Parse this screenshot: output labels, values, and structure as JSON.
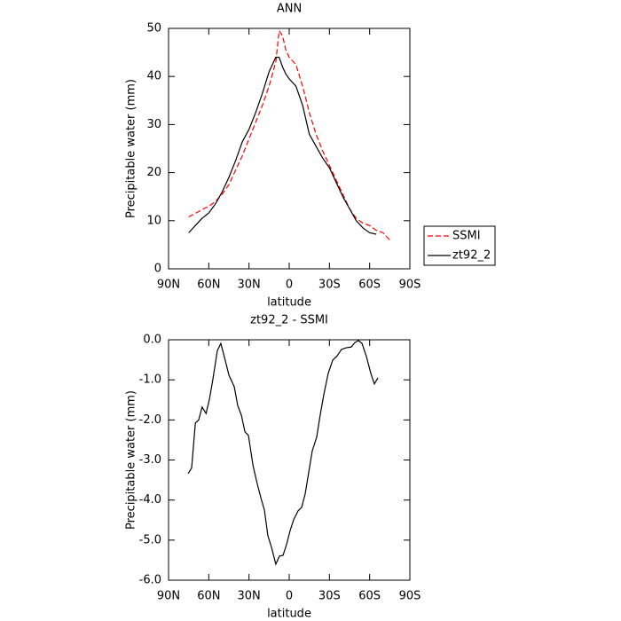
{
  "chart_data": [
    {
      "type": "line",
      "title": "ANN",
      "x_label": "latitude",
      "y_label": "Precipitable water (mm)",
      "x": [
        75,
        70,
        65,
        60,
        55,
        50,
        45,
        40,
        35,
        30,
        25,
        20,
        15,
        10,
        7.5,
        5,
        2.5,
        0,
        -5,
        -10,
        -15,
        -20,
        -25,
        -30,
        -35,
        -40,
        -45,
        -50,
        -55,
        -60,
        -65,
        -70,
        -75
      ],
      "series": [
        {
          "name": "SSMI",
          "color": "#ff0000",
          "line_style": "dashed",
          "values": [
            10.8,
            11.5,
            12.3,
            13,
            14,
            15.5,
            17.5,
            20.5,
            23.5,
            27,
            30.5,
            34,
            38,
            43,
            49.5,
            48.5,
            45.5,
            44,
            42.5,
            38,
            32.5,
            28,
            24.5,
            21.5,
            18.5,
            15.5,
            12.5,
            10.5,
            9.5,
            9,
            8,
            7.5,
            6
          ]
        },
        {
          "name": "zt92_2",
          "color": "#000000",
          "line_style": "solid",
          "values": [
            7.5,
            9,
            10.5,
            11.6,
            13.5,
            16,
            19,
            22.5,
            26.4,
            29,
            32.5,
            36.5,
            41,
            44,
            44,
            42,
            40.5,
            39.5,
            38,
            34,
            28,
            25.5,
            23,
            21,
            18,
            15,
            12.5,
            10,
            8.5,
            7.5,
            7.2,
            null,
            null
          ]
        }
      ],
      "xlim": [
        90,
        -90
      ],
      "xticks": [
        {
          "value": 90,
          "label": "90N"
        },
        {
          "value": 60,
          "label": "60N"
        },
        {
          "value": 30,
          "label": "30N"
        },
        0,
        {
          "value": -30,
          "label": "30S"
        },
        {
          "value": -60,
          "label": "60S"
        },
        {
          "value": -90,
          "label": "90S"
        }
      ],
      "ylim": [
        0,
        50
      ],
      "yticks": [
        0,
        10,
        20,
        30,
        40,
        50
      ],
      "legend": "right"
    },
    {
      "type": "line",
      "title": "zt92_2 - SSMI",
      "x_label": "latitude",
      "y_label": "Precipitable water (mm)",
      "x": [
        75.4,
        72.8,
        70,
        67.5,
        65,
        62,
        59.5,
        57,
        53.6,
        51,
        47.6,
        45,
        41,
        38.4,
        35.7,
        33,
        30.4,
        27,
        23.8,
        21,
        18.5,
        15.9,
        13.2,
        10,
        7.3,
        4.6,
        2,
        -0.7,
        -3.3,
        -6.6,
        -9.3,
        -11.9,
        -14.6,
        -17.2,
        -20.5,
        -23.2,
        -25.8,
        -29.1,
        -32.4,
        -35.8,
        -39,
        -42.4,
        -46.3,
        -49,
        -51.6,
        -54.3,
        -57.6,
        -60.9,
        -63.5,
        -66.2
      ],
      "series": [
        {
          "color": "#000000",
          "line_style": "solid",
          "values": [
            -3.34,
            -3.2,
            -2.08,
            -2.0,
            -1.68,
            -1.84,
            -1.48,
            -1.0,
            -0.27,
            -0.09,
            -0.53,
            -0.88,
            -1.17,
            -1.64,
            -1.88,
            -2.3,
            -2.39,
            -3.14,
            -3.6,
            -3.96,
            -4.25,
            -4.89,
            -5.18,
            -5.6,
            -5.4,
            -5.38,
            -5.11,
            -4.76,
            -4.49,
            -4.27,
            -4.18,
            -3.85,
            -3.3,
            -2.77,
            -2.43,
            -1.86,
            -1.37,
            -0.84,
            -0.51,
            -0.4,
            -0.24,
            -0.2,
            -0.18,
            -0.07,
            -0.02,
            -0.09,
            -0.42,
            -0.84,
            -1.1,
            -0.95
          ]
        }
      ],
      "xlim": [
        90,
        -90
      ],
      "xticks": [
        {
          "value": 90,
          "label": "90N"
        },
        {
          "value": 60,
          "label": "60N"
        },
        {
          "value": 30,
          "label": "30N"
        },
        0,
        {
          "value": -30,
          "label": "30S"
        },
        {
          "value": -60,
          "label": "60S"
        },
        {
          "value": -90,
          "label": "90S"
        }
      ],
      "ylim": [
        -6,
        0
      ],
      "yticks": [
        {
          "value": -6,
          "label": "-6.0"
        },
        {
          "value": -5,
          "label": "-5.0"
        },
        {
          "value": -4,
          "label": "-4.0"
        },
        {
          "value": -3,
          "label": "-3.0"
        },
        {
          "value": -2,
          "label": "-2.0"
        },
        {
          "value": -1,
          "label": "-1.0"
        },
        {
          "value": 0,
          "label": "0.0"
        }
      ]
    }
  ]
}
